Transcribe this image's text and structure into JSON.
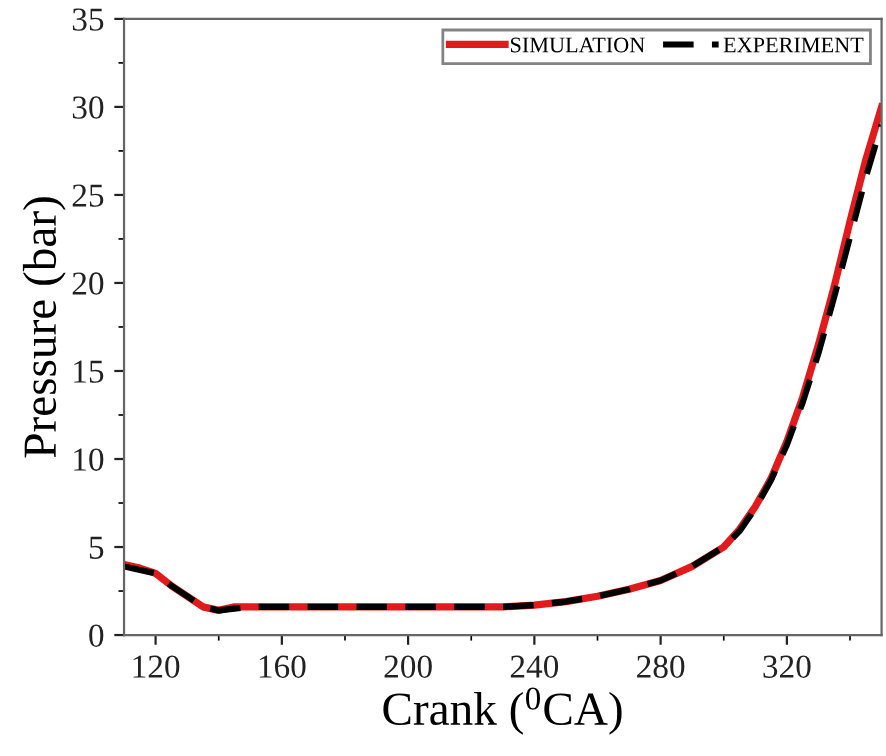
{
  "chart_data": {
    "type": "line",
    "xlabel": "Crank ($^{0}$CA)",
    "ylabel": "Pressure (bar)",
    "xlim": [
      110,
      350
    ],
    "xticks": [
      120,
      160,
      200,
      240,
      280,
      320
    ],
    "ylim": [
      0,
      35
    ],
    "yticks": [
      0,
      5,
      10,
      15,
      20,
      25,
      30,
      35
    ],
    "grid": false,
    "legend": "top right",
    "series": [
      {
        "name": "SIMULATION",
        "color": "#e31a1c",
        "line_style": "solid",
        "x": [
          110,
          115,
          120,
          125,
          130,
          135,
          140,
          145,
          150,
          160,
          180,
          200,
          220,
          230,
          240,
          250,
          260,
          270,
          280,
          290,
          300,
          305,
          310,
          315,
          320,
          325,
          330,
          335,
          340,
          345,
          350
        ],
        "values": [
          4.0,
          3.8,
          3.5,
          2.8,
          2.2,
          1.6,
          1.4,
          1.6,
          1.6,
          1.6,
          1.6,
          1.6,
          1.6,
          1.6,
          1.7,
          1.9,
          2.2,
          2.6,
          3.1,
          3.9,
          5.0,
          6.0,
          7.3,
          8.9,
          11.0,
          13.5,
          16.5,
          19.8,
          23.5,
          27.0,
          30.0
        ]
      },
      {
        "name": "EXPERIMENT",
        "color": "#000000",
        "line_style": "dashed",
        "x": [
          110,
          115,
          120,
          125,
          130,
          135,
          140,
          145,
          150,
          160,
          180,
          200,
          220,
          230,
          240,
          250,
          260,
          270,
          280,
          290,
          300,
          305,
          310,
          315,
          320,
          325,
          330,
          335,
          340,
          345,
          350
        ],
        "values": [
          3.9,
          3.7,
          3.5,
          2.8,
          2.2,
          1.6,
          1.4,
          1.5,
          1.6,
          1.6,
          1.6,
          1.6,
          1.6,
          1.6,
          1.7,
          1.9,
          2.2,
          2.6,
          3.1,
          3.9,
          5.0,
          5.9,
          7.2,
          8.8,
          10.8,
          13.2,
          16.0,
          19.2,
          22.6,
          26.0,
          29.0
        ]
      }
    ]
  }
}
